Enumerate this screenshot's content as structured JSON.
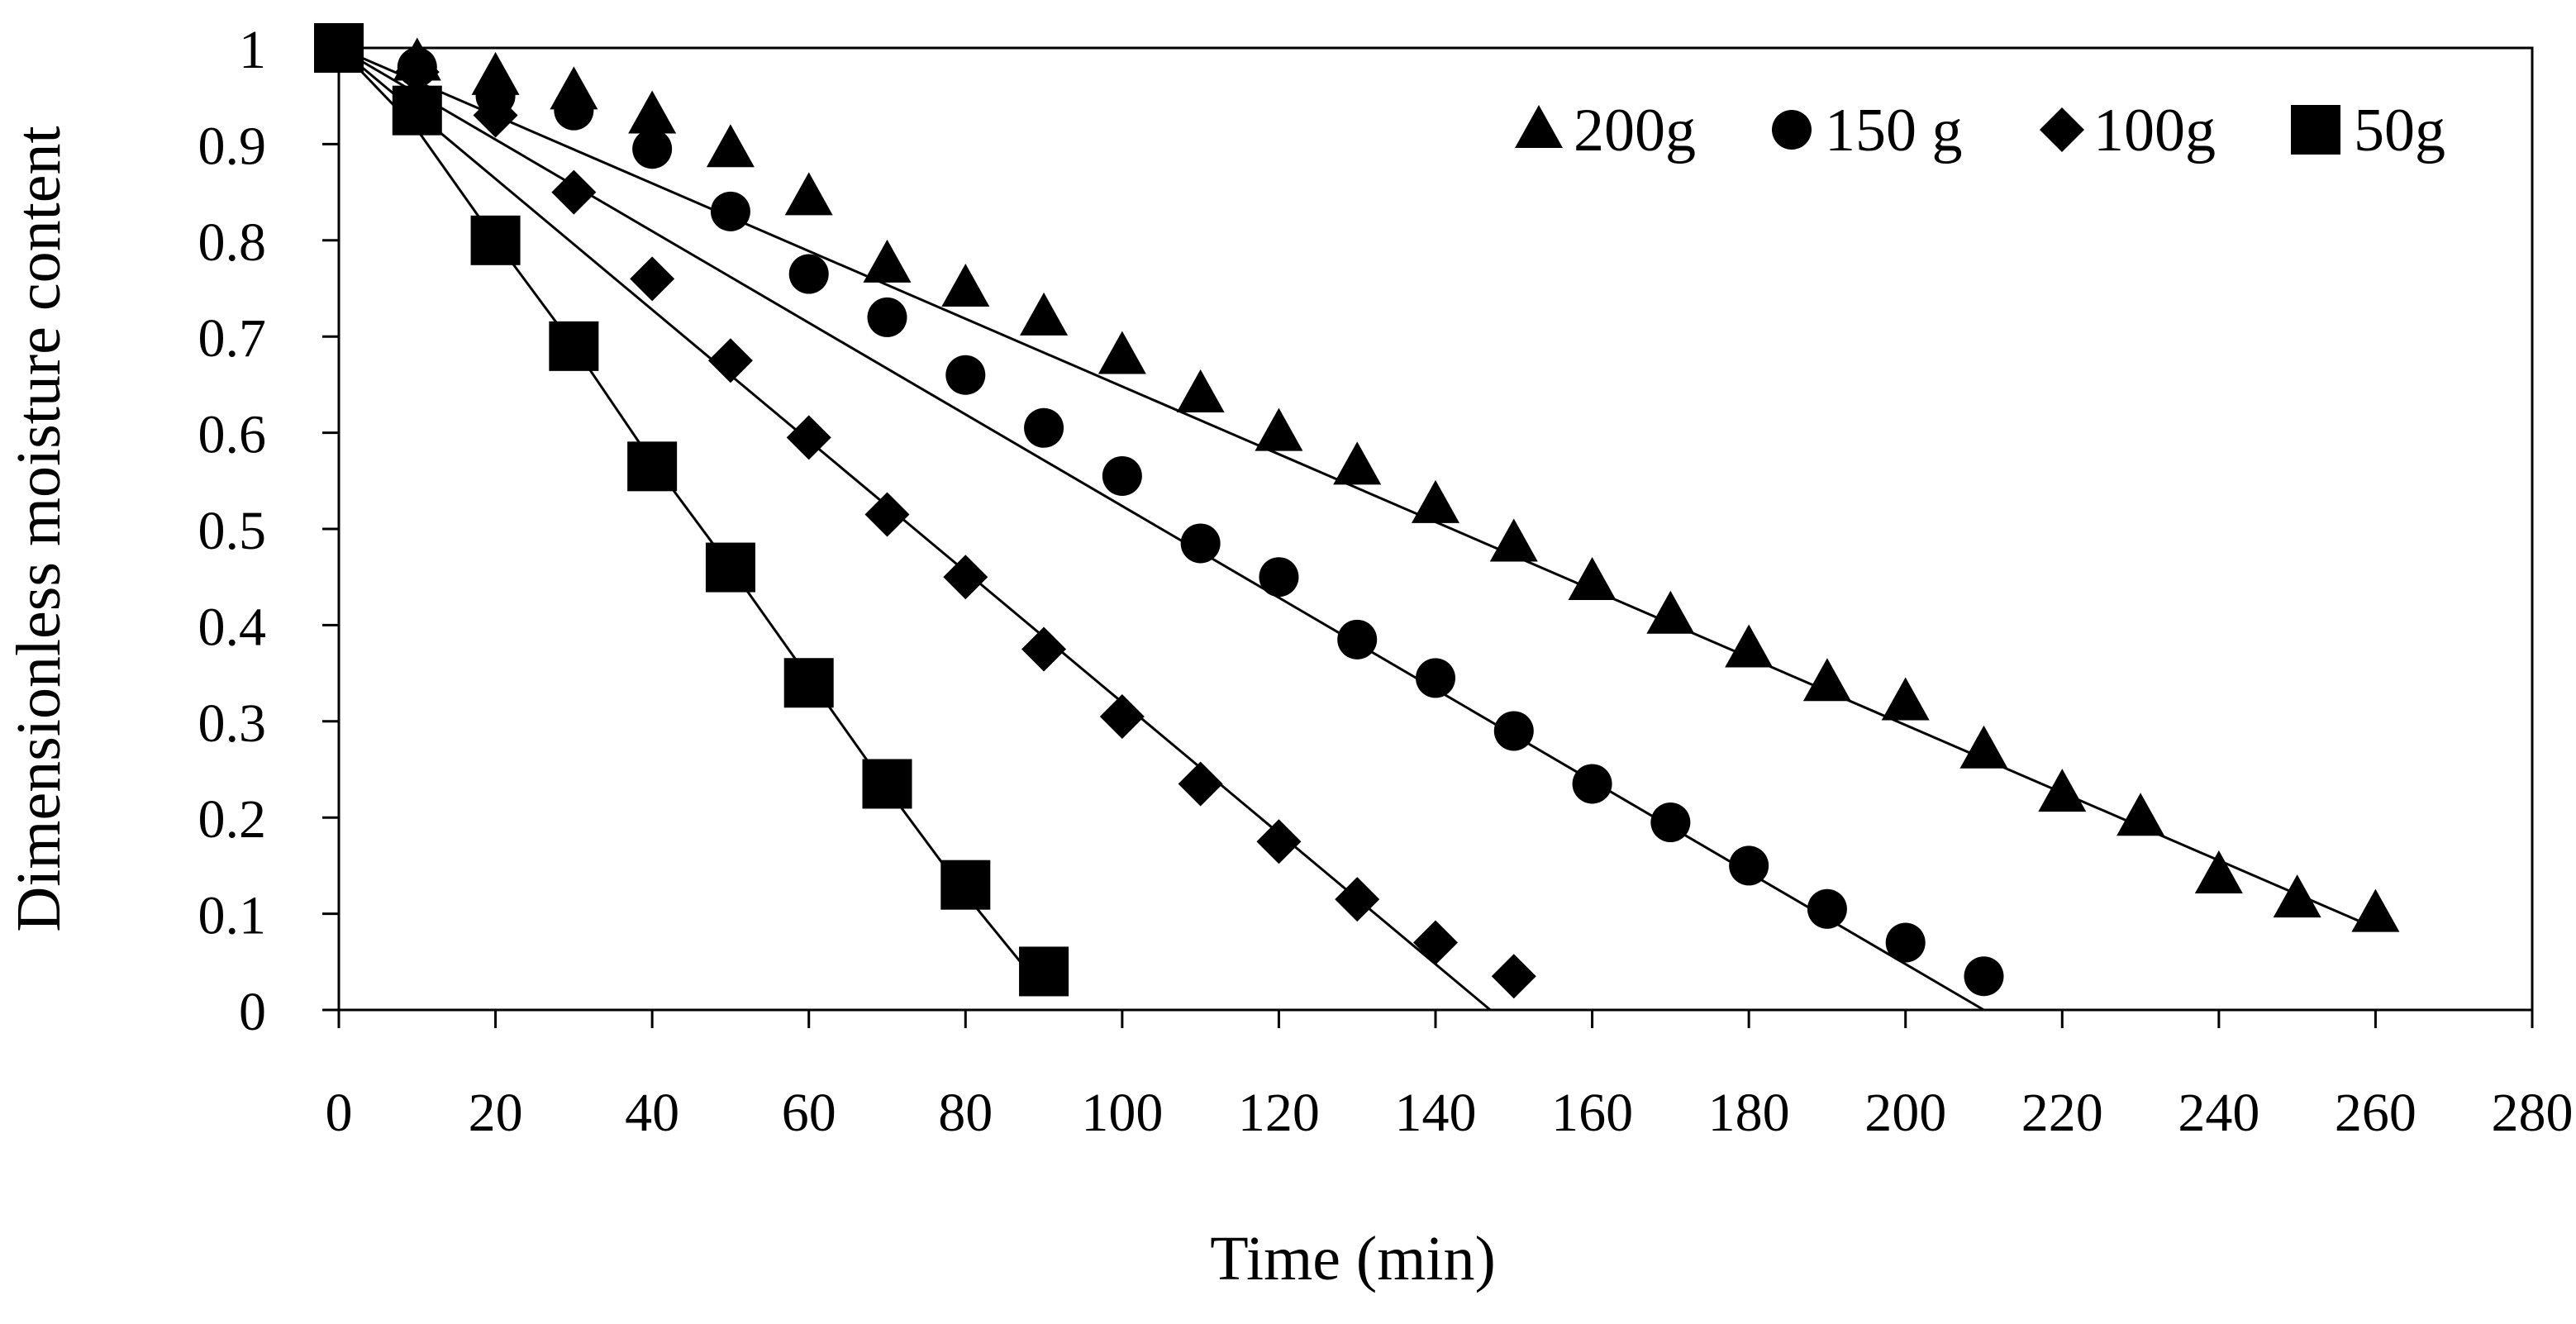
{
  "chart_data": {
    "type": "scatter",
    "title": "",
    "xlabel": "Time (min)",
    "ylabel": "Dimensionless moisture content",
    "xlim": [
      0,
      280
    ],
    "ylim": [
      0,
      1
    ],
    "xticks": [
      0,
      20,
      40,
      60,
      80,
      100,
      120,
      140,
      160,
      180,
      200,
      220,
      240,
      260,
      280
    ],
    "yticks": [
      0,
      0.1,
      0.2,
      0.3,
      0.4,
      0.5,
      0.6,
      0.7,
      0.8,
      0.9,
      1
    ],
    "ytick_labels": [
      "0",
      "0.1",
      "0.2",
      "0.3",
      "0.4",
      "0.5",
      "0.6",
      "0.7",
      "0.8",
      "0.9",
      "1"
    ],
    "grid": false,
    "legend_position": "top-right",
    "series": [
      {
        "name": "200g",
        "marker": "triangle",
        "x": [
          0,
          10,
          20,
          30,
          40,
          50,
          60,
          70,
          80,
          90,
          100,
          110,
          120,
          130,
          140,
          150,
          160,
          170,
          180,
          190,
          200,
          210,
          220,
          230,
          240,
          250,
          260
        ],
        "y": [
          1.0,
          0.985,
          0.97,
          0.955,
          0.93,
          0.895,
          0.845,
          0.775,
          0.75,
          0.72,
          0.68,
          0.64,
          0.6,
          0.565,
          0.525,
          0.485,
          0.445,
          0.41,
          0.375,
          0.34,
          0.32,
          0.27,
          0.225,
          0.2,
          0.14,
          0.115,
          0.1
        ],
        "fit_x": [
          0,
          260
        ],
        "fit_y": [
          1.0,
          0.085
        ]
      },
      {
        "name": "150 g",
        "marker": "circle",
        "x": [
          0,
          10,
          20,
          30,
          40,
          50,
          60,
          70,
          80,
          90,
          100,
          110,
          120,
          130,
          140,
          150,
          160,
          170,
          180,
          190,
          200,
          210
        ],
        "y": [
          1.0,
          0.98,
          0.95,
          0.935,
          0.895,
          0.83,
          0.765,
          0.72,
          0.66,
          0.605,
          0.555,
          0.485,
          0.45,
          0.385,
          0.345,
          0.29,
          0.235,
          0.195,
          0.15,
          0.105,
          0.07,
          0.035
        ],
        "fit_x": [
          0,
          210
        ],
        "fit_y": [
          1.0,
          0.0
        ]
      },
      {
        "name": "100g",
        "marker": "diamond",
        "x": [
          0,
          10,
          20,
          30,
          40,
          50,
          60,
          70,
          80,
          90,
          100,
          110,
          120,
          130,
          140,
          150
        ],
        "y": [
          1.0,
          0.975,
          0.93,
          0.85,
          0.76,
          0.675,
          0.595,
          0.515,
          0.45,
          0.375,
          0.305,
          0.235,
          0.175,
          0.115,
          0.07,
          0.035
        ],
        "fit_x": [
          0,
          147
        ],
        "fit_y": [
          1.0,
          0.0
        ]
      },
      {
        "name": "50g",
        "marker": "square",
        "x": [
          0,
          10,
          20,
          30,
          40,
          50,
          60,
          70,
          80,
          90
        ],
        "y": [
          1.0,
          0.935,
          0.8,
          0.69,
          0.565,
          0.46,
          0.34,
          0.235,
          0.13,
          0.04
        ],
        "fit_x": [
          0,
          10,
          20,
          30,
          40,
          50,
          60,
          70,
          80,
          88
        ],
        "fit_y": [
          1.0,
          0.915,
          0.8,
          0.69,
          0.57,
          0.46,
          0.345,
          0.23,
          0.12,
          0.04
        ]
      }
    ]
  }
}
